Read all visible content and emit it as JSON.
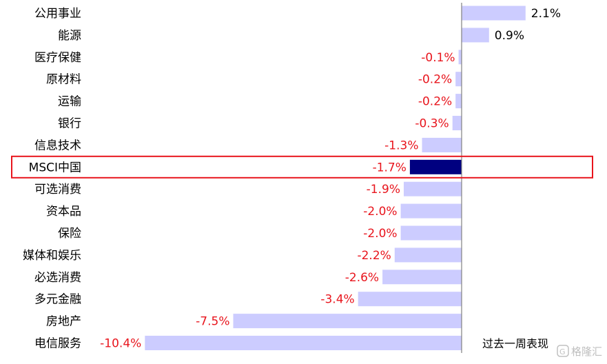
{
  "chart_data": {
    "type": "bar",
    "orientation": "horizontal",
    "categories": [
      "公用事业",
      "能源",
      "医疗保健",
      "原材料",
      "运输",
      "银行",
      "信息技术",
      "MSCI中国",
      "可选消费",
      "资本品",
      "保险",
      "媒体和娱乐",
      "必选消费",
      "多元金融",
      "房地产",
      "电信服务"
    ],
    "values": [
      2.1,
      0.9,
      -0.1,
      -0.2,
      -0.2,
      -0.3,
      -1.3,
      -1.7,
      -1.9,
      -2.0,
      -2.0,
      -2.2,
      -2.6,
      -3.4,
      -7.5,
      -10.4
    ],
    "value_labels": [
      "2.1%",
      "0.9%",
      "-0.1%",
      "-0.2%",
      "-0.2%",
      "-0.3%",
      "-1.3%",
      "-1.7%",
      "-1.9%",
      "-2.0%",
      "-2.0%",
      "-2.2%",
      "-2.6%",
      "-3.4%",
      "-7.5%",
      "-10.4%"
    ],
    "unit": "%",
    "highlight_category": "MSCI中国",
    "series_label": "过去一周表现",
    "grid": false,
    "colors": {
      "bar": "#ccccff",
      "highlight_bar": "#000080",
      "highlight_box": "#e8141c",
      "positive_label": "#000000",
      "negative_label": "#e8141c",
      "axis": "#808080"
    }
  },
  "watermark": {
    "text": "格隆汇",
    "icon": "logo-icon"
  }
}
